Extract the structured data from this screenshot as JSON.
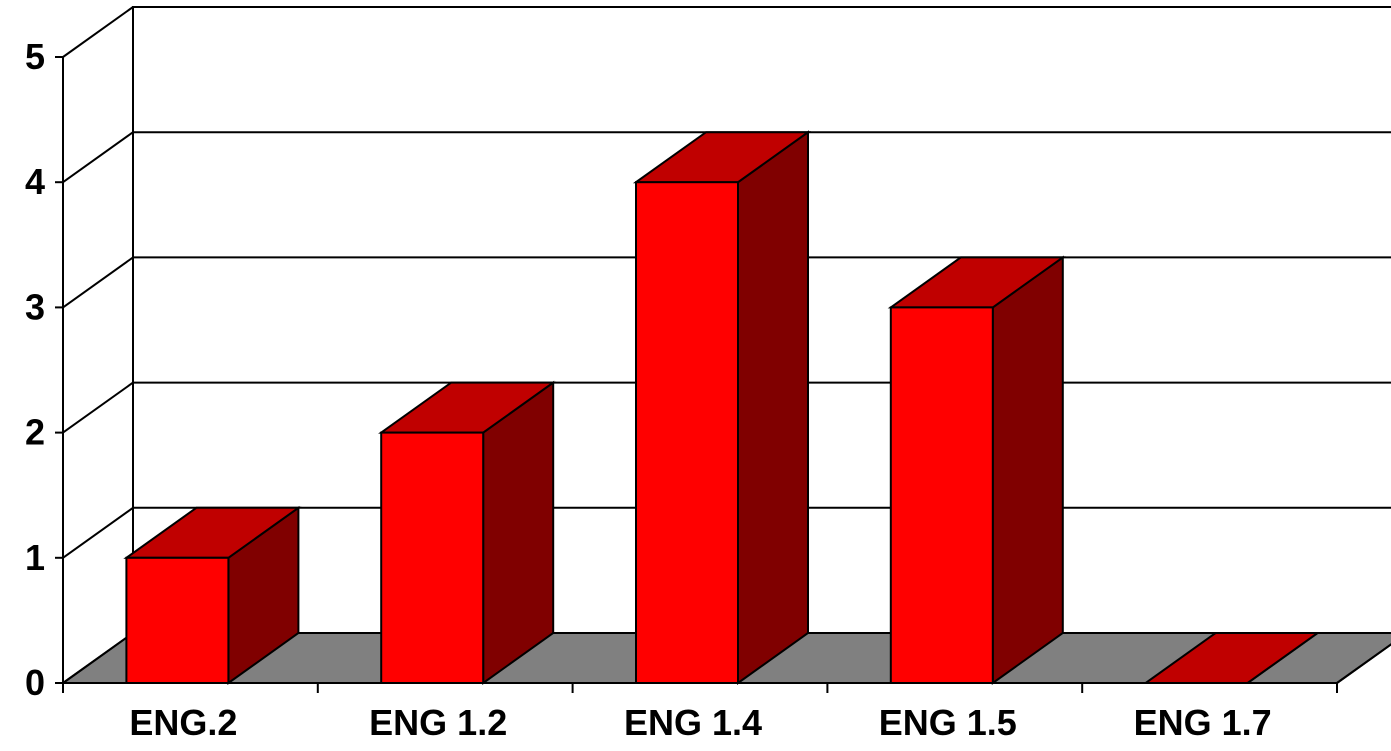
{
  "chart_data": {
    "type": "bar",
    "style": "3d",
    "categories": [
      "ENG.2",
      "ENG 1.2",
      "ENG 1.4",
      "ENG 1.5",
      "ENG 1.7"
    ],
    "values": [
      1,
      2,
      4,
      3,
      0
    ],
    "title": "",
    "xlabel": "",
    "ylabel": "",
    "ylim": [
      0,
      5
    ],
    "yticks": [
      "0",
      "1",
      "2",
      "3",
      "4",
      "5"
    ],
    "grid": true,
    "legend": "none",
    "colors": {
      "bar_front": "#ff0000",
      "bar_top": "#c00000",
      "bar_side": "#800000",
      "floor": "#808080",
      "grid": "#000000",
      "background": "#ffffff"
    }
  }
}
